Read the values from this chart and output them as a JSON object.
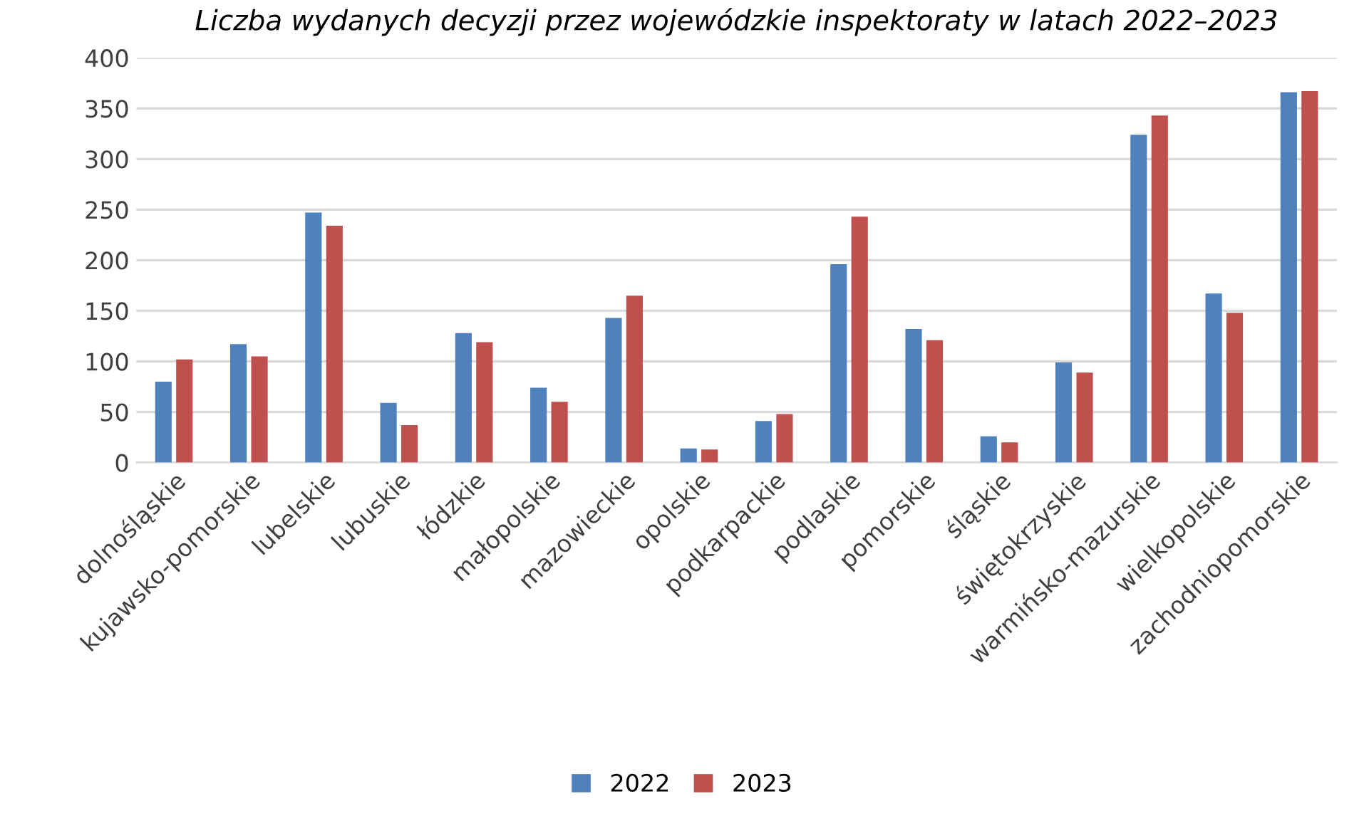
{
  "chart_data": {
    "type": "bar",
    "title": "Liczba wydanych decyzji przez wojewódzkie inspektoraty w latach 2022–2023",
    "categories": [
      "dolnośląskie",
      "kujawsko-pomorskie",
      "lubelskie",
      "lubuskie",
      "łódzkie",
      "małopolskie",
      "mazowieckie",
      "opolskie",
      "podkarpackie",
      "podlaskie",
      "pomorskie",
      "śląskie",
      "świętokrzyskie",
      "warmińsko-mazurskie",
      "wielkopolskie",
      "zachodniopomorskie"
    ],
    "series": [
      {
        "name": "2022",
        "color": "#4f81bd",
        "values": [
          80,
          117,
          247,
          59,
          128,
          74,
          143,
          14,
          41,
          196,
          132,
          26,
          99,
          324,
          167,
          366
        ]
      },
      {
        "name": "2023",
        "color": "#c0504d",
        "values": [
          102,
          105,
          234,
          37,
          119,
          60,
          165,
          13,
          48,
          243,
          121,
          20,
          89,
          343,
          148,
          367
        ]
      }
    ],
    "ylim": [
      0,
      400
    ],
    "yticks": [
      0,
      50,
      100,
      150,
      200,
      250,
      300,
      350,
      400
    ],
    "grid": "y",
    "legend": "bottom"
  }
}
